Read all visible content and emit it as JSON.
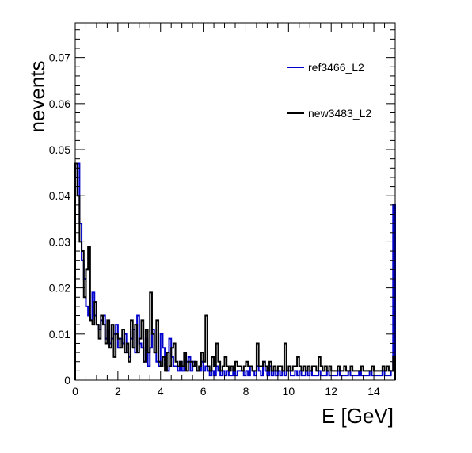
{
  "chart_data": {
    "type": "histogram-step",
    "xlabel": "E [GeV]",
    "ylabel": "nevents",
    "xlim": [
      0,
      15
    ],
    "ylim": [
      0,
      0.0775
    ],
    "bin_width": 0.1,
    "x_ticks": [
      0,
      2,
      4,
      6,
      8,
      10,
      12,
      14
    ],
    "x_tick_labels": [
      "0",
      "2",
      "4",
      "6",
      "8",
      "10",
      "12",
      "14"
    ],
    "y_ticks": [
      0,
      0.01,
      0.02,
      0.03,
      0.04,
      0.05,
      0.06,
      0.07
    ],
    "y_tick_labels": [
      "0",
      "0.01",
      "0.02",
      "0.03",
      "0.04",
      "0.05",
      "0.06",
      "0.07"
    ],
    "legend_position": "top-right",
    "series": [
      {
        "name": "ref3466_L2",
        "color": "#0000cc",
        "values": [
          0.044,
          0.047,
          0.034,
          0.026,
          0.022,
          0.016,
          0.014,
          0.013,
          0.019,
          0.014,
          0.012,
          0.011,
          0.013,
          0.014,
          0.009,
          0.011,
          0.008,
          0.009,
          0.01,
          0.012,
          0.007,
          0.009,
          0.008,
          0.01,
          0.006,
          0.005,
          0.009,
          0.011,
          0.006,
          0.014,
          0.008,
          0.007,
          0.004,
          0.009,
          0.003,
          0.007,
          0.011,
          0.006,
          0.004,
          0.003,
          0.01,
          0.007,
          0.003,
          0.002,
          0.009,
          0.005,
          0.003,
          0.003,
          0.002,
          0.004,
          0.002,
          0.004,
          0.004,
          0.005,
          0.002,
          0.004,
          0.003,
          0.002,
          0.002,
          0.004,
          0.002,
          0.003,
          0.002,
          0.001,
          0.002,
          0.001,
          0.003,
          0.002,
          0.001,
          0.002,
          0.001,
          0.002,
          0.001,
          0.001,
          0.003,
          0.001,
          0.002,
          0.002,
          0.002,
          0.001,
          0.002,
          0.001,
          0.003,
          0.002,
          0.001,
          0.003,
          0.002,
          0.001,
          0.004,
          0.002,
          0.001,
          0.003,
          0.001,
          0.002,
          0.001,
          0.002,
          0.001,
          0.002,
          0.001,
          0.002,
          0.002,
          0.001,
          0.001,
          0.002,
          0.001,
          0.002,
          0.001,
          0.001,
          0.002,
          0.001,
          0.002,
          0.001,
          0.001,
          0.001,
          0.002,
          0.001,
          0.001,
          0.001,
          0.002,
          0.001,
          0.001,
          0.001,
          0.001,
          0.002,
          0.001,
          0.001,
          0.001,
          0.001,
          0.002,
          0.001,
          0.001,
          0.001,
          0.001,
          0.002,
          0.001,
          0.001,
          0.001,
          0.001,
          0.002,
          0.001,
          0.001,
          0.001,
          0.001,
          0.001,
          0.002,
          0.001,
          0.001,
          0.001,
          0.002,
          0.038
        ]
      },
      {
        "name": "new3483_L2",
        "color": "#000000",
        "values": [
          0.047,
          0.04,
          0.03,
          0.028,
          0.018,
          0.024,
          0.029,
          0.013,
          0.012,
          0.017,
          0.012,
          0.009,
          0.014,
          0.012,
          0.008,
          0.013,
          0.007,
          0.012,
          0.005,
          0.01,
          0.009,
          0.007,
          0.011,
          0.006,
          0.008,
          0.004,
          0.013,
          0.007,
          0.012,
          0.006,
          0.009,
          0.013,
          0.004,
          0.011,
          0.006,
          0.019,
          0.01,
          0.006,
          0.013,
          0.004,
          0.003,
          0.005,
          0.002,
          0.006,
          0.003,
          0.007,
          0.008,
          0.004,
          0.003,
          0.004,
          0.003,
          0.006,
          0.002,
          0.004,
          0.004,
          0.003,
          0.004,
          0.002,
          0.003,
          0.006,
          0.004,
          0.014,
          0.003,
          0.002,
          0.005,
          0.003,
          0.008,
          0.004,
          0.002,
          0.003,
          0.005,
          0.003,
          0.002,
          0.003,
          0.002,
          0.004,
          0.003,
          0.003,
          0.002,
          0.003,
          0.004,
          0.003,
          0.003,
          0.002,
          0.002,
          0.008,
          0.003,
          0.003,
          0.004,
          0.003,
          0.002,
          0.004,
          0.002,
          0.003,
          0.002,
          0.003,
          0.003,
          0.002,
          0.008,
          0.002,
          0.003,
          0.002,
          0.003,
          0.003,
          0.005,
          0.003,
          0.002,
          0.003,
          0.002,
          0.003,
          0.002,
          0.003,
          0.003,
          0.002,
          0.005,
          0.003,
          0.002,
          0.003,
          0.002,
          0.003,
          0.002,
          0.002,
          0.002,
          0.003,
          0.002,
          0.002,
          0.003,
          0.002,
          0.002,
          0.003,
          0.002,
          0.002,
          0.002,
          0.002,
          0.003,
          0.002,
          0.002,
          0.002,
          0.002,
          0.003,
          0.002,
          0.002,
          0.002,
          0.002,
          0.003,
          0.002,
          0.003,
          0.002,
          0.002,
          0.005
        ]
      }
    ]
  }
}
